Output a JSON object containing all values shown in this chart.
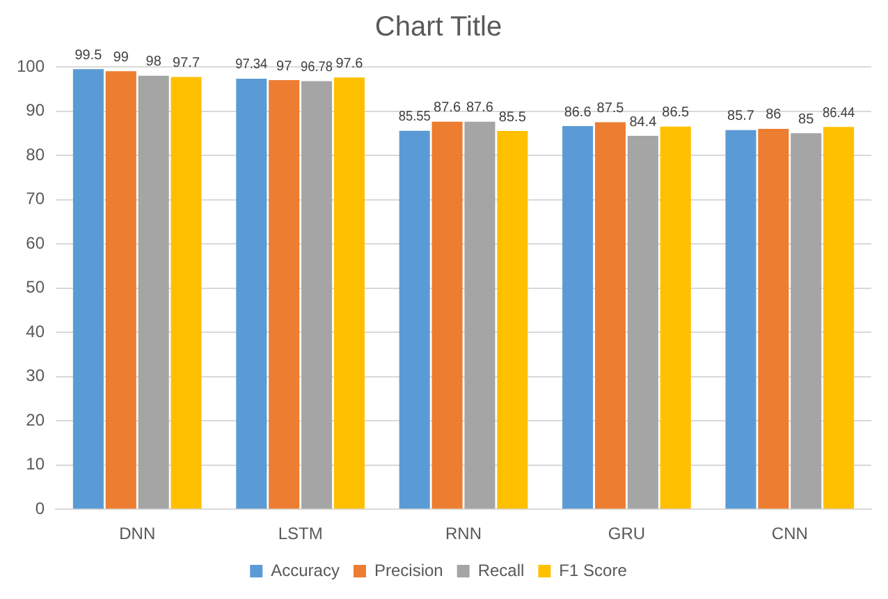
{
  "chart_data": {
    "type": "bar",
    "title": "Chart Title",
    "categories": [
      "DNN",
      "LSTM",
      "RNN",
      "GRU",
      "CNN"
    ],
    "series": [
      {
        "name": "Accuracy",
        "color": "#5b9bd5",
        "values": [
          99.5,
          97.34,
          85.55,
          86.6,
          85.7
        ]
      },
      {
        "name": "Precision",
        "color": "#ed7d31",
        "values": [
          99,
          97,
          87.6,
          87.5,
          86
        ]
      },
      {
        "name": "Recall",
        "color": "#a5a5a5",
        "values": [
          98,
          96.78,
          87.6,
          84.4,
          85
        ]
      },
      {
        "name": "F1 Score",
        "color": "#ffc000",
        "values": [
          97.7,
          97.6,
          85.5,
          86.5,
          86.44
        ]
      }
    ],
    "ylim": [
      0,
      100
    ],
    "yticks": [
      0,
      10,
      20,
      30,
      40,
      50,
      60,
      70,
      80,
      90,
      100
    ],
    "grid": "y",
    "legend": "bottom",
    "data_labels": true
  }
}
